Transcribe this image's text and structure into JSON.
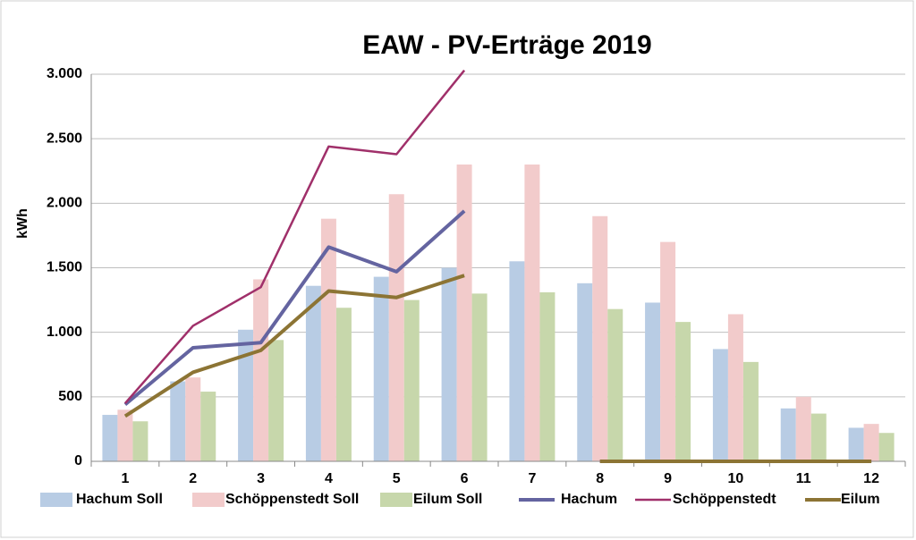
{
  "chart_data": {
    "type": "bar-line",
    "title": "EAW - PV-Erträge 2019",
    "y_label": "kWh",
    "categories": [
      "1",
      "2",
      "3",
      "4",
      "5",
      "6",
      "7",
      "8",
      "9",
      "10",
      "11",
      "12"
    ],
    "ylim": [
      0,
      3000
    ],
    "yticks": [
      0,
      500,
      {
        "value": 1000,
        "label": "1.000"
      },
      {
        "value": 1500,
        "label": "1.500"
      },
      {
        "value": 2000,
        "label": "2.000"
      },
      {
        "value": 2500,
        "label": "2.500"
      },
      {
        "value": 3000,
        "label": "3.000"
      }
    ],
    "grid": true,
    "legend": "bottom",
    "series": [
      {
        "name": "Hachum Soll",
        "kind": "bar",
        "color": "#b8cce4",
        "values": [
          360,
          620,
          1020,
          1360,
          1430,
          1500,
          1550,
          1380,
          1230,
          870,
          410,
          260
        ]
      },
      {
        "name": "Schöppenstedt Soll",
        "kind": "bar",
        "color": "#f2cbcb",
        "values": [
          400,
          650,
          1410,
          1880,
          2070,
          2300,
          2300,
          1900,
          1700,
          1140,
          500,
          290
        ]
      },
      {
        "name": "Eilum Soll",
        "kind": "bar",
        "color": "#c7d7ab",
        "values": [
          310,
          540,
          940,
          1190,
          1250,
          1300,
          1310,
          1180,
          1080,
          770,
          370,
          220
        ]
      },
      {
        "name": "Hachum",
        "kind": "line",
        "color": "#6464a0",
        "values": [
          440,
          880,
          920,
          1660,
          1470,
          1940,
          null,
          0,
          0,
          0,
          0,
          0
        ]
      },
      {
        "name": "Schöppenstedt",
        "kind": "line",
        "color": "#a0306a",
        "values": [
          450,
          1050,
          1350,
          2440,
          2380,
          3030,
          null,
          0,
          0,
          0,
          0,
          0
        ]
      },
      {
        "name": "Eilum",
        "kind": "line",
        "color": "#8c7434",
        "values": [
          350,
          690,
          860,
          1320,
          1270,
          1440,
          null,
          0,
          0,
          0,
          0,
          0
        ]
      }
    ]
  }
}
